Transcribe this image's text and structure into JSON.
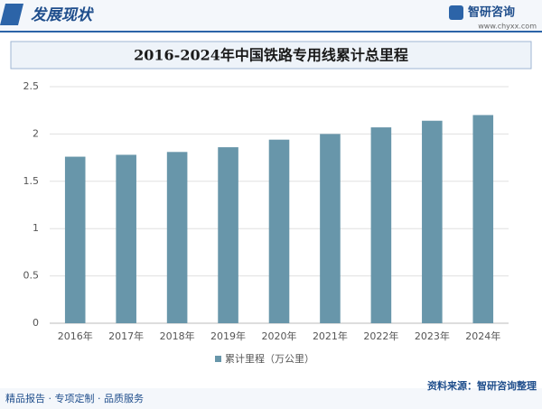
{
  "header": {
    "title": "发展现状",
    "logo": "智研咨询",
    "website": "www.chyxx.com"
  },
  "footer": {
    "slogan": "精品报告 · 专项定制 · 品质服务",
    "source": "资料来源：智研咨询整理"
  },
  "chart_data": {
    "type": "bar",
    "title": "2016-2024年中国铁路专用线累计总里程",
    "categories": [
      "2016年",
      "2017年",
      "2018年",
      "2019年",
      "2020年",
      "2021年",
      "2022年",
      "2023年",
      "2024年"
    ],
    "series": [
      {
        "name": "累计里程（万公里）",
        "color": "#6896aa",
        "values": [
          1.76,
          1.78,
          1.81,
          1.86,
          1.94,
          2.0,
          2.07,
          2.14,
          2.2
        ]
      }
    ],
    "ylim": [
      0,
      2.5
    ],
    "yticks": [
      0,
      0.5,
      1,
      1.5,
      2,
      2.5
    ],
    "grid": true,
    "legend": "bottom"
  }
}
